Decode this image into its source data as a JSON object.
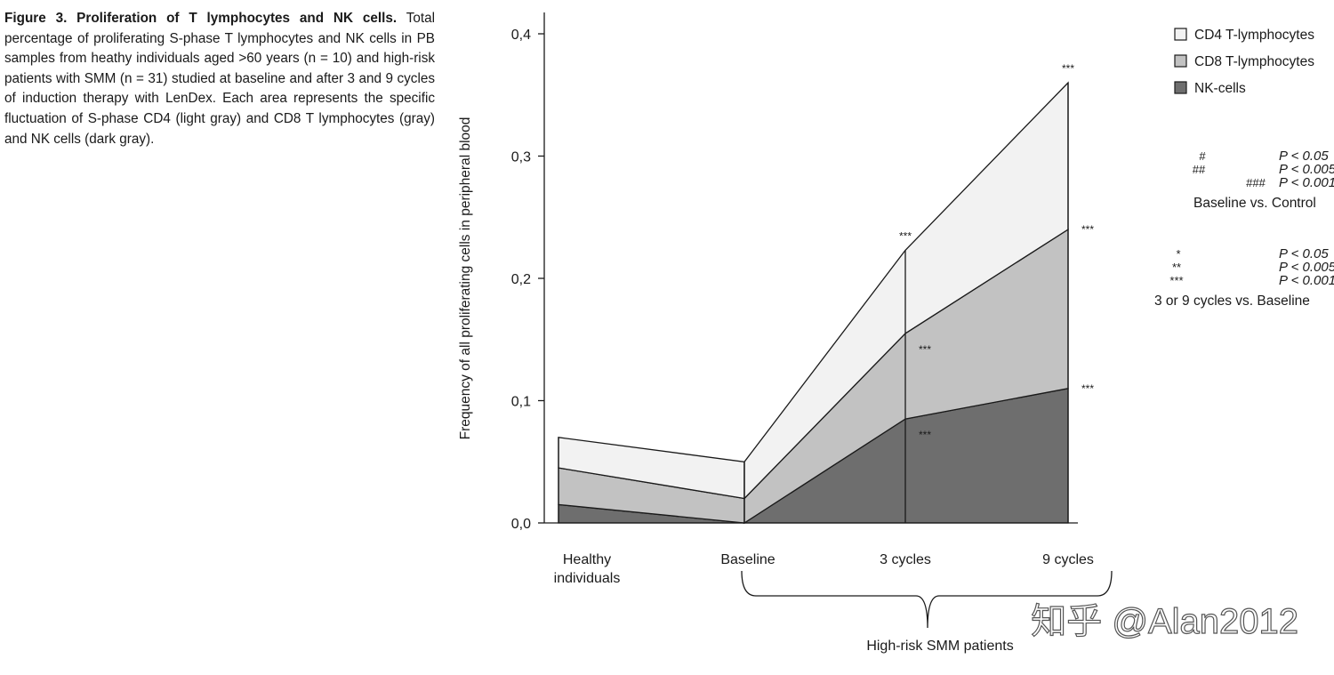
{
  "caption": {
    "title": "Figure 3. Proliferation of T lymphocytes and NK cells.",
    "body": "Total percentage of proliferating S-phase T lymphocytes and NK cells in PB samples from heathy individuals aged >60 years (n = 10) and high-risk patients with SMM (n = 31) studied at baseline and after 3 and 9 cycles of induction therapy with LenDex. Each area represents the specific fluctuation of S-phase CD4 (light gray) and CD8 T lymphocytes (gray) and NK cells (dark gray)."
  },
  "chart_data": {
    "type": "area",
    "stacked": true,
    "ylabel": "Frequency of all proliferating cells in peripheral blood",
    "ylim": [
      0,
      0.4
    ],
    "y_ticks": [
      "0,0",
      "0,1",
      "0,2",
      "0,3",
      "0,4"
    ],
    "categories": [
      "Healthy individuals",
      "Baseline",
      "3 cycles",
      "9 cycles"
    ],
    "category_labels": [
      [
        "Healthy",
        "individuals"
      ],
      [
        "Baseline"
      ],
      [
        "3 cycles"
      ],
      [
        "9 cycles"
      ]
    ],
    "series": [
      {
        "name": "NK-cells",
        "values": [
          0.015,
          0.0,
          0.085,
          0.11
        ],
        "color": "#6e6e6e"
      },
      {
        "name": "CD8 T-lymphocytes",
        "values": [
          0.03,
          0.02,
          0.07,
          0.13
        ],
        "color": "#c2c2c2"
      },
      {
        "name": "CD4 T-lymphocytes",
        "values": [
          0.025,
          0.03,
          0.068,
          0.12
        ],
        "color": "#f2f2f2"
      }
    ],
    "legend": [
      {
        "label": "CD4 T-lymphocytes",
        "color": "#f2f2f2"
      },
      {
        "label": "CD8 T-lymphocytes",
        "color": "#c2c2c2"
      },
      {
        "label": "NK-cells",
        "color": "#6e6e6e"
      }
    ],
    "group_bracket_label": "High-risk SMM patients",
    "significance_marks": [
      {
        "category": "3 cycles",
        "level": "total",
        "mark": "***"
      },
      {
        "category": "3 cycles",
        "level": "CD8",
        "mark": "***"
      },
      {
        "category": "3 cycles",
        "level": "NK",
        "mark": "***"
      },
      {
        "category": "9 cycles",
        "level": "total",
        "mark": "***"
      },
      {
        "category": "9 cycles",
        "level": "CD8",
        "mark": "***"
      },
      {
        "category": "9 cycles",
        "level": "NK",
        "mark": "***"
      }
    ],
    "significance_key": {
      "baseline_vs_control": [
        {
          "symbol": "#",
          "p": "P < 0.05"
        },
        {
          "symbol": "##",
          "p": "P < 0.005"
        },
        {
          "symbol": "###",
          "p": "P < 0.001"
        }
      ],
      "baseline_vs_control_label": "Baseline vs. Control",
      "cycles_vs_baseline": [
        {
          "symbol": "*",
          "p": "P < 0.05"
        },
        {
          "symbol": "**",
          "p": "P < 0.005"
        },
        {
          "symbol": "***",
          "p": "P < 0.001"
        }
      ],
      "cycles_vs_baseline_label": "3 or 9 cycles vs. Baseline"
    }
  },
  "watermark": "知乎 @Alan2012"
}
